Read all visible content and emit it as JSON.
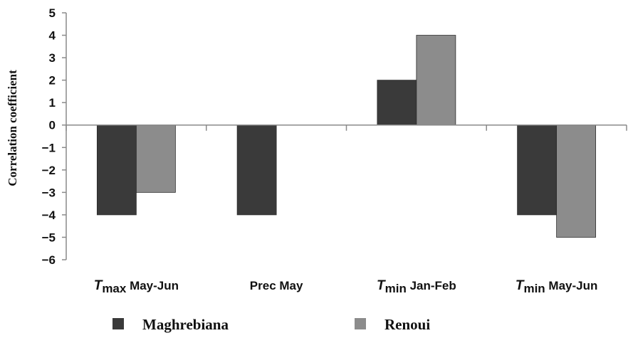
{
  "chart_data": {
    "type": "bar",
    "ylabel": "Correlation coefficient",
    "xlabel": "",
    "ylim": [
      -6,
      5
    ],
    "yticks": [
      5,
      4,
      3,
      2,
      1,
      0,
      -1,
      -2,
      -3,
      -4,
      -5,
      -6
    ],
    "categories": [
      {
        "italic": "T",
        "sub": "max",
        "rest": "May-Jun"
      },
      {
        "italic": "",
        "sub": "",
        "rest": "Prec May"
      },
      {
        "italic": "T",
        "sub": "min",
        "rest": "Jan-Feb"
      },
      {
        "italic": "T",
        "sub": "min",
        "rest": "May-Jun"
      }
    ],
    "series": [
      {
        "name": "Maghrebiana",
        "color": "#3a3a3a",
        "values": [
          -4,
          -4,
          2,
          -4
        ]
      },
      {
        "name": "Renoui",
        "color": "#8c8c8c",
        "values": [
          -3,
          0,
          4,
          -5
        ]
      }
    ],
    "legend": "bottom",
    "grid": false
  }
}
